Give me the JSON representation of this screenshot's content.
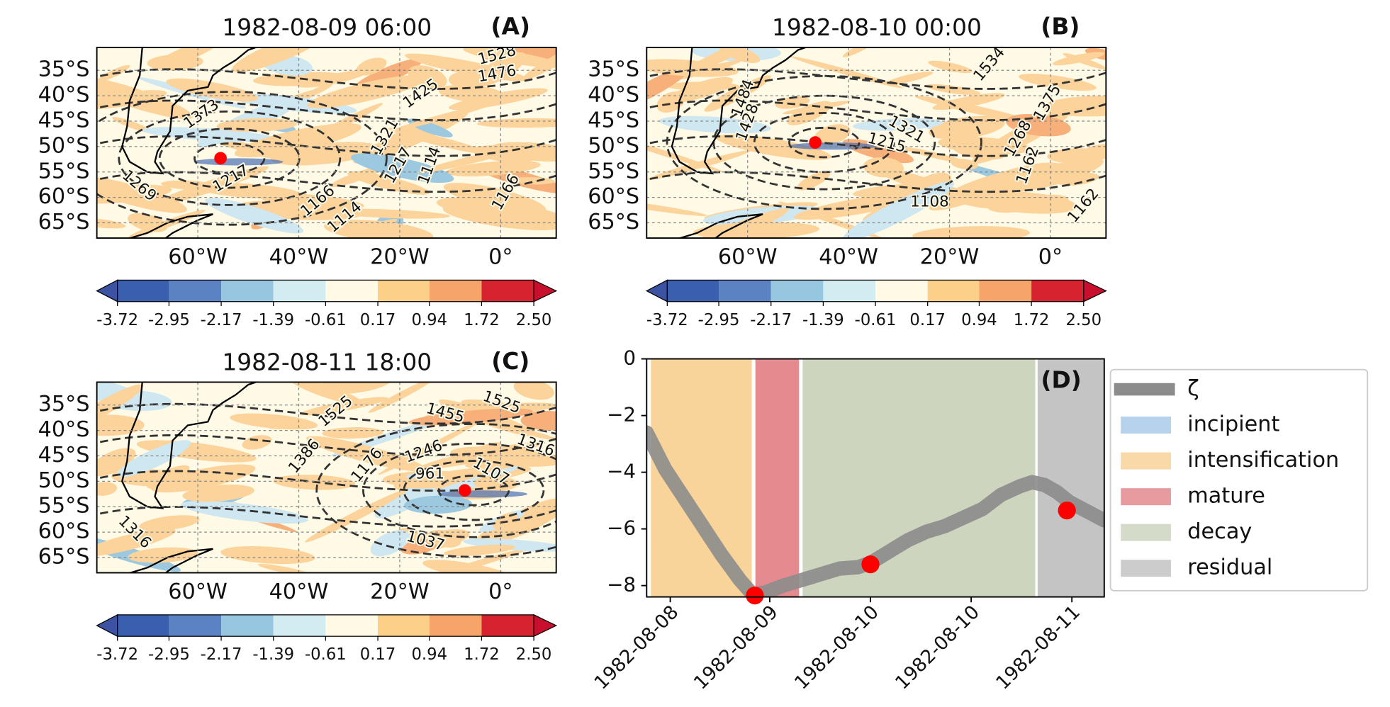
{
  "maps": [
    {
      "title": "1982-08-09 06:00",
      "label": "(A)",
      "xlim": [
        -80,
        11
      ],
      "ylim": [
        -68,
        -30.5
      ],
      "yticks": [
        {
          "value": -35,
          "label": "35°S"
        },
        {
          "value": -40,
          "label": "40°S"
        },
        {
          "value": -45,
          "label": "45°S"
        },
        {
          "value": -50,
          "label": "50°S"
        },
        {
          "value": -55,
          "label": "55°S"
        },
        {
          "value": -60,
          "label": "60°S"
        },
        {
          "value": -65,
          "label": "65°S"
        }
      ],
      "xticks": [
        {
          "value": -60,
          "label": "60°W"
        },
        {
          "value": -40,
          "label": "40°W"
        },
        {
          "value": -20,
          "label": "20°W"
        },
        {
          "value": 0,
          "label": "0°"
        }
      ],
      "contour_labels": [
        "1528",
        "1476",
        "1373",
        "1425",
        "1321",
        "1269",
        "1217",
        "1166",
        "1114",
        "1217",
        "1114",
        "1166"
      ],
      "marker": {
        "lon": -55.5,
        "lat": -52.3
      },
      "colorbar": {
        "colors": [
          "#3a5fae",
          "#5b82c3",
          "#97c6e0",
          "#d2ecf2",
          "#fefae6",
          "#fdd08a",
          "#f7a46b",
          "#d7232f"
        ],
        "ticks": [
          -3.72,
          -2.95,
          -2.17,
          -1.39,
          -0.61,
          0.17,
          0.94,
          1.72,
          {
            "value": 2.5,
            "label": "2.50"
          }
        ]
      }
    },
    {
      "title": "1982-08-10 00:00",
      "label": "(B)",
      "xlim": [
        -80,
        11
      ],
      "ylim": [
        -68,
        -30.5
      ],
      "yticks": [
        {
          "value": -35,
          "label": "35°S"
        },
        {
          "value": -40,
          "label": "40°S"
        },
        {
          "value": -45,
          "label": "45°S"
        },
        {
          "value": -50,
          "label": "50°S"
        },
        {
          "value": -55,
          "label": "55°S"
        },
        {
          "value": -60,
          "label": "60°S"
        },
        {
          "value": -65,
          "label": "65°S"
        }
      ],
      "xticks": [
        {
          "value": -60,
          "label": "60°W"
        },
        {
          "value": -40,
          "label": "40°W"
        },
        {
          "value": -20,
          "label": "20°W"
        },
        {
          "value": 0,
          "label": "0°"
        }
      ],
      "contour_labels": [
        "1534",
        "1375",
        "1321",
        "1215",
        "1268",
        "1162",
        "1108",
        "1162",
        "1484",
        "1428"
      ],
      "marker": {
        "lon": -46.6,
        "lat": -49.2
      },
      "colorbar": {
        "colors": [
          "#3a5fae",
          "#5b82c3",
          "#97c6e0",
          "#d2ecf2",
          "#fefae6",
          "#fdd08a",
          "#f7a46b",
          "#d7232f"
        ],
        "ticks": [
          -3.72,
          -2.95,
          -2.17,
          -1.39,
          -0.61,
          0.17,
          0.94,
          1.72,
          {
            "value": 2.5,
            "label": "2.50"
          }
        ]
      }
    },
    {
      "title": "1982-08-11 18:00",
      "label": "(C)",
      "xlim": [
        -80,
        11
      ],
      "ylim": [
        -68,
        -30.5
      ],
      "yticks": [
        {
          "value": -35,
          "label": "35°S"
        },
        {
          "value": -40,
          "label": "40°S"
        },
        {
          "value": -45,
          "label": "45°S"
        },
        {
          "value": -50,
          "label": "50°S"
        },
        {
          "value": -55,
          "label": "55°S"
        },
        {
          "value": -60,
          "label": "60°S"
        },
        {
          "value": -65,
          "label": "65°S"
        }
      ],
      "xticks": [
        {
          "value": -60,
          "label": "60°W"
        },
        {
          "value": -40,
          "label": "40°W"
        },
        {
          "value": -20,
          "label": "20°W"
        },
        {
          "value": 0,
          "label": "0°"
        }
      ],
      "contour_labels": [
        "1525",
        "1455",
        "1316",
        "1525",
        "1246",
        "1107",
        "1386",
        "1176",
        "961",
        "1037",
        "1316"
      ],
      "marker": {
        "lon": -7.1,
        "lat": -51.8
      },
      "colorbar": {
        "colors": [
          "#3a5fae",
          "#5b82c3",
          "#97c6e0",
          "#d2ecf2",
          "#fefae6",
          "#fdd08a",
          "#f7a46b",
          "#d7232f"
        ],
        "ticks": [
          -3.72,
          -2.95,
          -2.17,
          -1.39,
          -0.61,
          0.17,
          0.94,
          1.72,
          {
            "value": 2.5,
            "label": "2.50"
          }
        ]
      }
    }
  ],
  "chart_data": {
    "type": "line",
    "label": "(D)",
    "legend": "right",
    "xlim": [
      8.2,
      11.88
    ],
    "ylim": [
      -8.4,
      0
    ],
    "xticks": [
      {
        "value": 8.39,
        "label": "1982-08-08"
      },
      {
        "value": 9.19,
        "label": "1982-08-09"
      },
      {
        "value": 10.0,
        "label": "1982-08-10"
      },
      {
        "value": 10.81,
        "label": "1982-08-10"
      },
      {
        "value": 11.62,
        "label": "1982-08-11"
      }
    ],
    "yticks": [
      0,
      {
        "value": -2,
        "label": "−2"
      },
      {
        "value": -4,
        "label": "−4"
      },
      {
        "value": -6,
        "label": "−6"
      },
      {
        "value": -8,
        "label": "−8"
      }
    ],
    "series": [
      {
        "name": "ζ",
        "color": "#8c8c8c",
        "x": [
          8.2,
          8.35,
          8.5,
          8.65,
          8.8,
          8.95,
          9.05,
          9.15,
          9.3,
          9.45,
          9.6,
          9.75,
          9.9,
          10.0,
          10.15,
          10.3,
          10.45,
          10.6,
          10.75,
          10.9,
          11.05,
          11.2,
          11.3,
          11.4,
          11.5,
          11.6,
          11.75,
          11.88
        ],
        "values": [
          -2.6,
          -3.9,
          -4.9,
          -5.9,
          -6.9,
          -7.8,
          -8.3,
          -8.25,
          -8.0,
          -7.8,
          -7.6,
          -7.4,
          -7.35,
          -7.2,
          -6.8,
          -6.4,
          -6.1,
          -5.9,
          -5.6,
          -5.3,
          -4.8,
          -4.5,
          -4.35,
          -4.45,
          -4.7,
          -5.05,
          -5.4,
          -5.7
        ]
      }
    ],
    "markers": {
      "color": "#ff0000",
      "x": [
        9.07,
        10.0,
        11.58
      ],
      "values": [
        -8.35,
        -7.25,
        -5.35
      ]
    },
    "phases": [
      {
        "name": "incipient",
        "color": "#aacbeb"
      },
      {
        "name": "intensification",
        "color": "#f8d39a",
        "start": 8.24,
        "end": 9.04
      },
      {
        "name": "mature",
        "color": "#e58a8f",
        "start": 9.08,
        "end": 9.42
      },
      {
        "name": "decay",
        "color": "#cdd5bf",
        "start": 9.46,
        "end": 11.32
      },
      {
        "name": "residual",
        "color": "#c4c4c4",
        "start": 11.35,
        "end": 11.88
      }
    ]
  }
}
